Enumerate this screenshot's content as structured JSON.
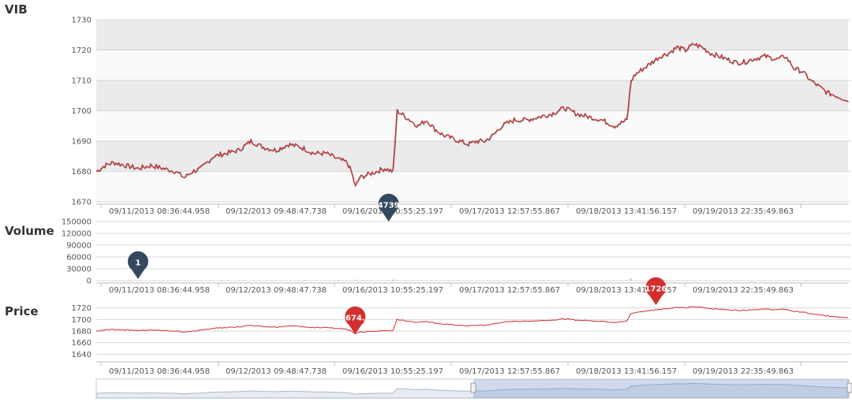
{
  "chart_data": [
    {
      "type": "line",
      "title": "VIB",
      "ylim": [
        1670,
        1730
      ],
      "yticks": [
        1670,
        1680,
        1690,
        1700,
        1710,
        1720,
        1730
      ],
      "xticks": [
        "09/11/2013 08:36:44.958",
        "09/12/2013 09:48:47.738",
        "09/16/2013 10:55:25.197",
        "09/17/2013 12:57:55.867",
        "09/18/2013 13:41:56.157",
        "09/19/2013 22:35:49.863"
      ],
      "grid": "alternating horizontal bands",
      "series": [
        {
          "color": "#d32f2f",
          "points": [
            [
              0,
              1680
            ],
            [
              2,
              1682
            ],
            [
              4,
              1683
            ],
            [
              7,
              1682
            ],
            [
              10,
              1681
            ],
            [
              13,
              1682
            ],
            [
              16,
              1681
            ],
            [
              19,
              1680
            ],
            [
              21,
              1678
            ],
            [
              23,
              1680
            ],
            [
              25,
              1681
            ],
            [
              28,
              1685
            ],
            [
              31,
              1686
            ],
            [
              34,
              1687
            ],
            [
              37,
              1690
            ],
            [
              40,
              1688
            ],
            [
              43,
              1687
            ],
            [
              46,
              1689
            ],
            [
              49,
              1688
            ],
            [
              52,
              1686
            ],
            [
              55,
              1686
            ],
            [
              58,
              1684
            ],
            [
              60,
              1683
            ],
            [
              61,
              1680
            ],
            [
              62,
              1675
            ],
            [
              63,
              1678
            ],
            [
              65,
              1679
            ],
            [
              67,
              1680
            ],
            [
              69,
              1681
            ],
            [
              71,
              1680
            ],
            [
              72,
              1700
            ],
            [
              73,
              1699
            ],
            [
              75,
              1697
            ],
            [
              77,
              1695
            ],
            [
              79,
              1697
            ],
            [
              81,
              1694
            ],
            [
              83,
              1692
            ],
            [
              85,
              1691
            ],
            [
              87,
              1690
            ],
            [
              89,
              1689
            ],
            [
              91,
              1690
            ],
            [
              93,
              1690
            ],
            [
              95,
              1692
            ],
            [
              97,
              1695
            ],
            [
              100,
              1697
            ],
            [
              103,
              1697
            ],
            [
              106,
              1698
            ],
            [
              109,
              1699
            ],
            [
              112,
              1701
            ],
            [
              115,
              1699
            ],
            [
              118,
              1698
            ],
            [
              121,
              1697
            ],
            [
              124,
              1695
            ],
            [
              127,
              1697
            ],
            [
              128,
              1710
            ],
            [
              129,
              1712
            ],
            [
              131,
              1714
            ],
            [
              133,
              1716
            ],
            [
              135,
              1718
            ],
            [
              137,
              1719
            ],
            [
              139,
              1721
            ],
            [
              141,
              1720
            ],
            [
              143,
              1722
            ],
            [
              145,
              1721
            ],
            [
              147,
              1719
            ],
            [
              149,
              1718
            ],
            [
              151,
              1717
            ],
            [
              153,
              1716
            ],
            [
              155,
              1716
            ],
            [
              157,
              1717
            ],
            [
              160,
              1718
            ],
            [
              163,
              1717
            ],
            [
              165,
              1718
            ],
            [
              167,
              1714
            ],
            [
              169,
              1713
            ],
            [
              171,
              1710
            ],
            [
              173,
              1708
            ],
            [
              175,
              1706
            ],
            [
              177,
              1705
            ],
            [
              179,
              1704
            ],
            [
              180,
              1703
            ]
          ]
        }
      ]
    },
    {
      "type": "bar",
      "title": "Volume",
      "ylim": [
        0,
        150000
      ],
      "yticks": [
        0,
        30000,
        60000,
        90000,
        120000,
        150000
      ],
      "xticks": [
        "09/11/2013 08:36:44.958",
        "09/12/2013 09:48:47.738",
        "09/16/2013 10:55:25.197",
        "09/17/2013 12:57:55.867",
        "09/18/2013 13:41:56.157",
        "09/19/2013 22:35:49.863"
      ],
      "series": [
        {
          "color": "#6b7785",
          "points": [
            [
              8,
              600
            ],
            [
              19,
              400
            ],
            [
              30,
              800
            ],
            [
              42,
              500
            ],
            [
              50,
              1200
            ],
            [
              58,
              900
            ],
            [
              62,
              1500
            ],
            [
              64,
              700
            ],
            [
              70,
              1000
            ],
            [
              71,
              2500
            ],
            [
              72,
              800
            ],
            [
              84,
              600
            ],
            [
              96,
              500
            ],
            [
              108,
              700
            ],
            [
              120,
              600
            ],
            [
              127,
              1200
            ],
            [
              128,
              4739
            ],
            [
              136,
              900
            ],
            [
              148,
              700
            ],
            [
              160,
              800
            ],
            [
              170,
              600
            ],
            [
              176,
              500
            ]
          ]
        }
      ],
      "flags": [
        {
          "x": 10,
          "y": 1,
          "text": "1",
          "color": "#34495e"
        },
        {
          "x": 70,
          "y": 4739,
          "text": "4739",
          "color": "#34495e"
        }
      ]
    },
    {
      "type": "line",
      "title": "Price",
      "ylim": [
        1635,
        1725
      ],
      "yticks": [
        1640,
        1660,
        1680,
        1700,
        1720
      ],
      "xticks": [
        "09/11/2013 08:36:44.958",
        "09/12/2013 09:48:47.738",
        "09/16/2013 10:55:25.197",
        "09/17/2013 12:57:55.867",
        "09/18/2013 13:41:56.157",
        "09/19/2013 22:35:49.863"
      ],
      "series": [
        {
          "color": "#d32f2f",
          "ref": 0
        }
      ],
      "flags": [
        {
          "x": 62,
          "y": 1674.5,
          "text": "674.",
          "color": "#d32f2f"
        },
        {
          "x": 134,
          "y": 1726,
          "text": "1726",
          "color": "#d32f2f"
        }
      ]
    }
  ]
}
